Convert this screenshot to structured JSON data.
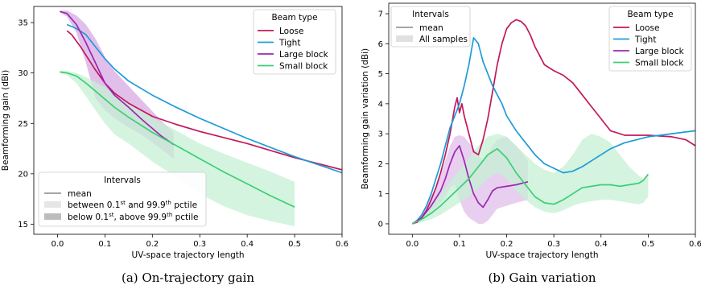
{
  "charts": [
    {
      "type": "line",
      "caption": "(a) On-trajectory gain",
      "xlabel": "UV-space trajectory length",
      "ylabel": "Beamforming gain (dBi)",
      "xlim": [
        -0.05,
        0.6
      ],
      "ylim": [
        14,
        36.6
      ],
      "xticks": [
        "0.0",
        "0.1",
        "0.2",
        "0.3",
        "0.4",
        "0.5",
        "0.6"
      ],
      "xtick_values": [
        0,
        0.1,
        0.2,
        0.3,
        0.4,
        0.5,
        0.6
      ],
      "yticks": [
        "15",
        "20",
        "25",
        "30",
        "35"
      ],
      "ytick_values": [
        15,
        20,
        25,
        30,
        35
      ],
      "grid": false,
      "legend_series": {
        "title": "Beam type",
        "placement": "top-right",
        "entries": [
          "Loose",
          "Tight",
          "Large block",
          "Small block"
        ]
      },
      "legend_intervals": {
        "title": "Intervals",
        "placement": "bottom-left",
        "entries": [
          {
            "kind": "line",
            "text": "mean"
          },
          {
            "kind": "light",
            "pre": "between 0.1",
            "sup1": "st",
            "mid": " and 99.9",
            "sup2": "th",
            "post": " pctile"
          },
          {
            "kind": "dark",
            "pre": "below 0.1",
            "sup1": "st",
            "mid": ", above 99.9",
            "sup2": "th",
            "post": " pctile"
          }
        ]
      },
      "series": [
        {
          "name": "Loose",
          "color": "#c2185b",
          "x": [
            0.02,
            0.03,
            0.05,
            0.08,
            0.1,
            0.12,
            0.15,
            0.2,
            0.25,
            0.3,
            0.35,
            0.4,
            0.45,
            0.5,
            0.55,
            0.6
          ],
          "y": [
            34.2,
            33.8,
            32.5,
            30.3,
            29.0,
            28.0,
            27.0,
            25.7,
            24.9,
            24.2,
            23.6,
            23.0,
            22.3,
            21.6,
            21.0,
            20.4
          ],
          "band_low": [],
          "band_high": []
        },
        {
          "name": "Tight",
          "color": "#1f9bd7",
          "x": [
            0.02,
            0.04,
            0.06,
            0.08,
            0.1,
            0.12,
            0.15,
            0.2,
            0.25,
            0.3,
            0.35,
            0.4,
            0.45,
            0.5,
            0.55,
            0.6
          ],
          "y": [
            34.8,
            34.4,
            33.8,
            32.6,
            31.4,
            30.4,
            29.2,
            27.8,
            26.6,
            25.5,
            24.5,
            23.5,
            22.6,
            21.7,
            20.9,
            20.1
          ],
          "band_low": [],
          "band_high": []
        },
        {
          "name": "Large block",
          "color": "#9c27b0",
          "x": [
            0.005,
            0.02,
            0.04,
            0.06,
            0.08,
            0.1,
            0.12,
            0.15,
            0.18,
            0.2,
            0.22,
            0.245
          ],
          "y": [
            36.1,
            35.9,
            34.8,
            33.0,
            31.0,
            29.0,
            27.8,
            26.6,
            25.3,
            24.5,
            23.7,
            22.9
          ],
          "band_low": [
            36.0,
            35.6,
            34.0,
            31.0,
            27.5,
            26.3,
            25.5,
            24.6,
            23.8,
            23.1,
            22.4,
            21.5
          ],
          "band_high": [
            36.2,
            36.2,
            35.7,
            34.8,
            33.4,
            31.6,
            30.2,
            28.7,
            27.2,
            26.2,
            25.2,
            24.1
          ],
          "band_color": "#d7a9e3"
        },
        {
          "name": "Small block",
          "color": "#3ccf74",
          "x": [
            0.005,
            0.02,
            0.04,
            0.06,
            0.08,
            0.1,
            0.12,
            0.15,
            0.2,
            0.25,
            0.3,
            0.35,
            0.4,
            0.45,
            0.5
          ],
          "y": [
            30.1,
            30.0,
            29.7,
            29.0,
            28.2,
            27.4,
            26.6,
            25.6,
            24.1,
            22.8,
            21.5,
            20.2,
            19.0,
            17.8,
            16.7
          ],
          "band_low": [
            30.0,
            29.8,
            29.0,
            27.7,
            26.3,
            25.0,
            23.9,
            23.0,
            21.2,
            19.7,
            18.0,
            16.8,
            15.9,
            15.3,
            14.8
          ],
          "band_high": [
            30.2,
            30.2,
            30.0,
            29.6,
            29.1,
            28.6,
            28.0,
            27.0,
            25.6,
            24.3,
            23.0,
            22.0,
            21.1,
            20.2,
            19.2
          ],
          "band_color": "#c6f0d6"
        }
      ]
    },
    {
      "type": "line",
      "caption": "(b) Gain variation",
      "xlabel": "UV-space trajectory length",
      "ylabel": "Beamforming gain variation (dBi)",
      "xlim": [
        -0.05,
        0.6
      ],
      "ylim": [
        -0.35,
        7.35
      ],
      "xticks": [
        "0.0",
        "0.1",
        "0.2",
        "0.3",
        "0.4",
        "0.5",
        "0.6"
      ],
      "xtick_values": [
        0,
        0.1,
        0.2,
        0.3,
        0.4,
        0.5,
        0.6
      ],
      "yticks": [
        "0",
        "1",
        "2",
        "3",
        "4",
        "5",
        "6",
        "7"
      ],
      "ytick_values": [
        0,
        1,
        2,
        3,
        4,
        5,
        6,
        7
      ],
      "grid": false,
      "legend_series": {
        "title": "Beam type",
        "placement": "top-right",
        "entries": [
          "Loose",
          "Tight",
          "Large block",
          "Small block"
        ]
      },
      "legend_intervals": {
        "title": "Intervals",
        "placement": "top-left",
        "entries": [
          {
            "kind": "line",
            "text": "mean"
          },
          {
            "kind": "light",
            "text": "All samples"
          }
        ]
      },
      "series": [
        {
          "name": "Loose",
          "color": "#c2185b",
          "x": [
            0.0,
            0.01,
            0.02,
            0.03,
            0.04,
            0.05,
            0.06,
            0.07,
            0.08,
            0.09,
            0.095,
            0.1,
            0.105,
            0.11,
            0.12,
            0.13,
            0.14,
            0.15,
            0.16,
            0.17,
            0.18,
            0.19,
            0.2,
            0.21,
            0.22,
            0.23,
            0.24,
            0.25,
            0.26,
            0.27,
            0.28,
            0.29,
            0.3,
            0.32,
            0.34,
            0.36,
            0.38,
            0.4,
            0.42,
            0.45,
            0.5,
            0.55,
            0.58,
            0.6
          ],
          "y": [
            0.0,
            0.05,
            0.2,
            0.45,
            0.8,
            1.2,
            1.7,
            2.3,
            3.0,
            3.9,
            4.2,
            3.7,
            4.0,
            3.6,
            3.0,
            2.4,
            2.3,
            2.8,
            3.5,
            4.4,
            5.3,
            6.0,
            6.5,
            6.7,
            6.8,
            6.75,
            6.6,
            6.3,
            5.9,
            5.6,
            5.3,
            5.2,
            5.1,
            4.95,
            4.7,
            4.3,
            3.9,
            3.5,
            3.1,
            2.95,
            2.95,
            2.9,
            2.8,
            2.6
          ],
          "band_low": [],
          "band_high": []
        },
        {
          "name": "Tight",
          "color": "#1f9bd7",
          "x": [
            0.0,
            0.01,
            0.02,
            0.03,
            0.04,
            0.05,
            0.06,
            0.07,
            0.08,
            0.09,
            0.1,
            0.11,
            0.12,
            0.13,
            0.14,
            0.15,
            0.16,
            0.17,
            0.18,
            0.19,
            0.2,
            0.22,
            0.24,
            0.26,
            0.28,
            0.3,
            0.32,
            0.34,
            0.36,
            0.38,
            0.4,
            0.42,
            0.45,
            0.5,
            0.55,
            0.6
          ],
          "y": [
            0.0,
            0.1,
            0.3,
            0.6,
            1.0,
            1.5,
            2.0,
            2.6,
            3.2,
            3.6,
            4.0,
            4.6,
            5.3,
            6.2,
            6.0,
            5.4,
            5.0,
            4.6,
            4.3,
            4.0,
            3.6,
            3.1,
            2.7,
            2.3,
            2.0,
            1.85,
            1.7,
            1.75,
            1.9,
            2.1,
            2.3,
            2.5,
            2.7,
            2.9,
            3.0,
            3.1
          ],
          "band_low": [],
          "band_high": []
        },
        {
          "name": "Large block",
          "color": "#9c27b0",
          "x": [
            0.0,
            0.02,
            0.04,
            0.06,
            0.07,
            0.08,
            0.09,
            0.1,
            0.11,
            0.12,
            0.13,
            0.14,
            0.15,
            0.16,
            0.17,
            0.18,
            0.2,
            0.22,
            0.245
          ],
          "y": [
            0.0,
            0.2,
            0.6,
            1.1,
            1.5,
            2.0,
            2.4,
            2.6,
            2.1,
            1.5,
            1.0,
            0.7,
            0.55,
            0.8,
            1.1,
            1.2,
            1.25,
            1.3,
            1.4
          ],
          "band_low": [
            0.0,
            0.1,
            0.4,
            0.7,
            0.9,
            1.2,
            1.3,
            0.8,
            0.4,
            0.2,
            0.1,
            0.0,
            0.0,
            0.1,
            0.3,
            0.5,
            0.6,
            0.7,
            0.8
          ],
          "band_high": [
            0.0,
            0.3,
            0.9,
            1.6,
            2.1,
            2.6,
            2.9,
            2.95,
            2.9,
            2.7,
            2.5,
            2.3,
            2.1,
            2.3,
            2.6,
            2.8,
            2.9,
            2.6,
            2.1
          ],
          "band_color": "#e0bdea"
        },
        {
          "name": "Small block",
          "color": "#3ccf74",
          "x": [
            0.0,
            0.02,
            0.04,
            0.06,
            0.08,
            0.1,
            0.12,
            0.14,
            0.16,
            0.18,
            0.2,
            0.22,
            0.24,
            0.26,
            0.28,
            0.3,
            0.32,
            0.34,
            0.36,
            0.38,
            0.4,
            0.42,
            0.44,
            0.46,
            0.48,
            0.49,
            0.5
          ],
          "y": [
            0.0,
            0.15,
            0.35,
            0.6,
            0.9,
            1.2,
            1.5,
            1.9,
            2.3,
            2.5,
            2.2,
            1.7,
            1.3,
            0.9,
            0.7,
            0.65,
            0.8,
            1.0,
            1.2,
            1.25,
            1.3,
            1.3,
            1.25,
            1.3,
            1.35,
            1.45,
            1.65
          ],
          "band_low": [
            0.0,
            0.05,
            0.15,
            0.3,
            0.5,
            0.7,
            0.9,
            1.2,
            1.5,
            1.7,
            1.5,
            1.1,
            0.8,
            0.55,
            0.4,
            0.35,
            0.45,
            0.6,
            0.7,
            0.75,
            0.8,
            0.8,
            0.75,
            0.7,
            0.65,
            0.7,
            0.9
          ],
          "band_high": [
            0.0,
            0.25,
            0.6,
            1.0,
            1.4,
            1.8,
            2.2,
            2.6,
            2.9,
            3.0,
            2.9,
            2.6,
            2.3,
            2.0,
            1.8,
            1.7,
            1.9,
            2.3,
            2.8,
            3.0,
            2.9,
            2.7,
            2.3,
            1.9,
            1.6,
            1.5,
            1.7
          ],
          "band_color": "#c6f0d6"
        }
      ]
    }
  ]
}
